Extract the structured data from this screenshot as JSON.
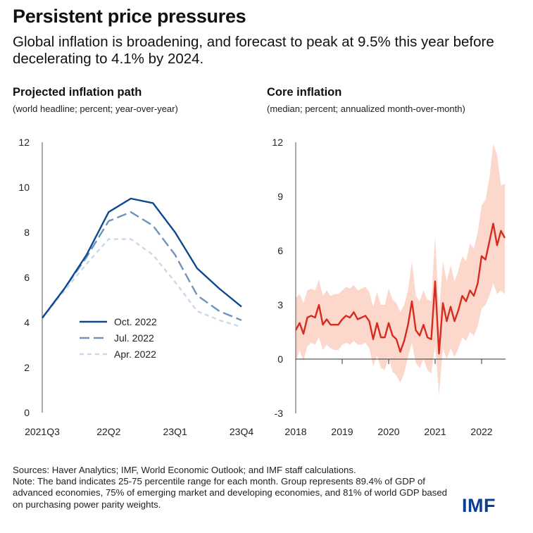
{
  "header": {
    "title": "Persistent price pressures",
    "subtitle": "Global inflation is broadening, and forecast to peak at 9.5% this year before decelerating to 4.1% by 2024."
  },
  "left_panel": {
    "title": "Projected inflation path",
    "subtitle": "(world headline; percent;  year-over-year)"
  },
  "right_panel": {
    "title": "Core inflation",
    "subtitle": "(median; percent; annualized month-over-month)"
  },
  "chart_data": [
    {
      "type": "line",
      "title": "Projected inflation path",
      "ylabel": "world headline; percent; year-over-year",
      "ylim": [
        0,
        12
      ],
      "yticks": [
        "0",
        "2",
        "4",
        "6",
        "8",
        "10",
        "12"
      ],
      "x_ticks": [
        "2021Q3",
        "22Q2",
        "23Q1",
        "23Q4"
      ],
      "x": [
        "2021Q3",
        "2021Q4",
        "2022Q1",
        "2022Q2",
        "2022Q3",
        "2022Q4",
        "2023Q1",
        "2023Q2",
        "2023Q3",
        "2023Q4"
      ],
      "series": [
        {
          "name": "Oct. 2022",
          "color": "#0b4a8f",
          "dash": "solid",
          "values": [
            4.2,
            5.5,
            7.0,
            8.9,
            9.5,
            9.3,
            8.0,
            6.4,
            5.5,
            4.7
          ]
        },
        {
          "name": "Jul. 2022",
          "color": "#6f93b8",
          "dash": "long",
          "values": [
            4.2,
            5.5,
            6.9,
            8.5,
            8.9,
            8.3,
            7.0,
            5.2,
            4.5,
            4.1
          ]
        },
        {
          "name": "Apr. 2022",
          "color": "#c9d9ea",
          "dash": "short",
          "values": [
            4.2,
            5.4,
            6.6,
            7.7,
            7.7,
            7.0,
            5.8,
            4.5,
            4.1,
            3.8
          ]
        }
      ],
      "legend": "center-left"
    },
    {
      "type": "line",
      "title": "Core inflation",
      "ylabel": "median; percent; annualized month-over-month",
      "ylim": [
        -3,
        12
      ],
      "yticks": [
        "-3",
        "0",
        "3",
        "6",
        "9",
        "12"
      ],
      "x_ticks": [
        "2018",
        "2019",
        "2020",
        "2021",
        "2022"
      ],
      "x_start": 2018.0,
      "x_step_months": 1,
      "series": [
        {
          "name": "Median",
          "color": "#d72b20",
          "values": [
            1.6,
            2.0,
            1.4,
            2.3,
            2.4,
            2.3,
            3.0,
            1.9,
            2.2,
            1.9,
            1.9,
            1.9,
            2.2,
            2.4,
            2.3,
            2.6,
            2.2,
            2.3,
            2.4,
            2.1,
            1.1,
            2.0,
            1.2,
            1.2,
            2.0,
            1.3,
            1.1,
            0.4,
            1.0,
            1.9,
            3.2,
            1.6,
            1.3,
            1.9,
            1.2,
            1.1,
            4.3,
            0.3,
            3.1,
            2.1,
            2.9,
            2.1,
            2.7,
            3.5,
            3.2,
            3.8,
            3.5,
            4.2,
            5.7,
            5.5,
            6.5,
            7.5,
            6.3,
            7.1,
            6.7
          ]
        }
      ],
      "band": {
        "label": "25-75 percentile range",
        "color": "#fbd0c2",
        "lower": [
          -0.2,
          0.5,
          -0.1,
          0.7,
          0.9,
          0.8,
          1.2,
          0.5,
          0.8,
          0.6,
          0.5,
          0.5,
          0.8,
          0.9,
          0.8,
          1.0,
          0.8,
          0.8,
          0.9,
          0.6,
          -0.4,
          0.2,
          -0.5,
          -0.6,
          0.1,
          -0.7,
          -0.9,
          -1.3,
          -0.8,
          0.1,
          0.9,
          -0.2,
          -0.5,
          0.0,
          -0.6,
          -0.8,
          0.8,
          -2.0,
          0.6,
          0.0,
          0.6,
          0.1,
          0.6,
          1.2,
          1.0,
          1.5,
          1.3,
          1.8,
          2.8,
          3.0,
          3.5,
          4.2,
          3.6,
          3.8,
          3.6
        ],
        "upper": [
          3.4,
          3.6,
          3.1,
          3.8,
          3.9,
          3.8,
          4.4,
          3.5,
          3.8,
          3.5,
          3.6,
          3.6,
          3.8,
          4.0,
          3.9,
          4.1,
          3.8,
          3.9,
          4.0,
          3.7,
          2.9,
          3.7,
          3.0,
          3.0,
          3.9,
          3.3,
          3.1,
          2.6,
          3.0,
          3.8,
          5.4,
          3.5,
          3.2,
          3.8,
          3.3,
          3.2,
          6.8,
          2.6,
          5.4,
          4.3,
          5.2,
          4.3,
          4.9,
          5.7,
          5.4,
          6.4,
          6.1,
          7.0,
          8.5,
          8.8,
          10.0,
          11.9,
          11.3,
          9.6,
          9.7
        ]
      }
    }
  ],
  "footer": {
    "sources": "Sources: Haver Analytics; IMF, World Economic Outlook; and IMF staff calculations.",
    "note": "Note: The band indicates 25-75 percentile range for each month. Group represents 89.4% of GDP of advanced economies, 75% of emerging market and developing economies, and 81% of world GDP based on purchasing power parity weights.",
    "logo": "IMF"
  }
}
